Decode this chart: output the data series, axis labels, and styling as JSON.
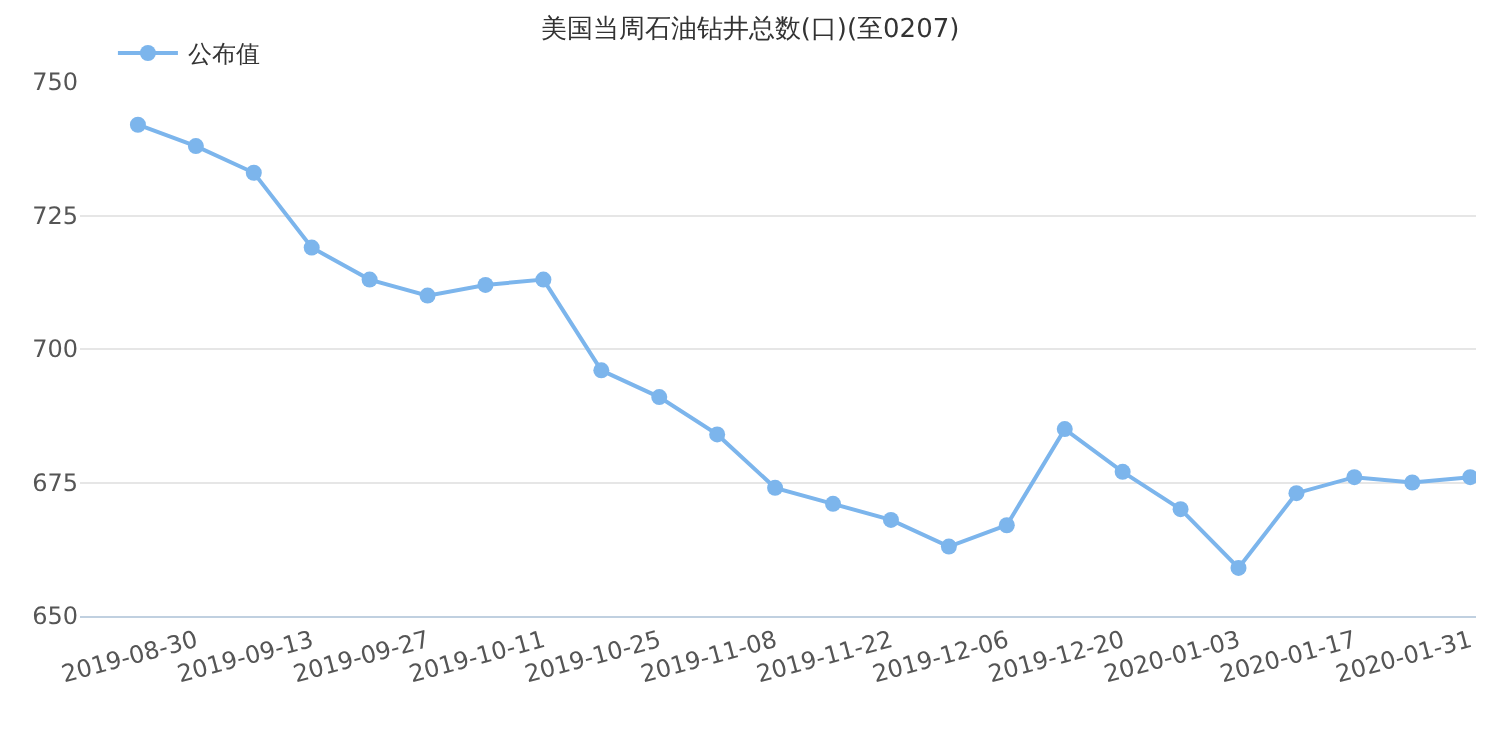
{
  "chart_data": {
    "type": "line",
    "title": "美国当周石油钻井总数(口)(至0207)",
    "categories": [
      null,
      "2019-08-30",
      null,
      "2019-09-13",
      null,
      "2019-09-27",
      null,
      "2019-10-11",
      null,
      "2019-10-25",
      null,
      "2019-11-08",
      null,
      "2019-11-22",
      null,
      "2019-12-06",
      null,
      "2019-12-20",
      null,
      "2020-01-03",
      null,
      "2020-01-17",
      null,
      "2020-01-31"
    ],
    "series": [
      {
        "name": "公布值",
        "color": "#7cb5ec",
        "values": [
          742,
          738,
          733,
          719,
          713,
          710,
          712,
          713,
          696,
          691,
          684,
          674,
          671,
          668,
          663,
          667,
          685,
          677,
          670,
          659,
          673,
          676,
          675,
          676
        ]
      }
    ],
    "ylim": [
      650,
      750
    ],
    "yticks": [
      650,
      675,
      700,
      725,
      750
    ],
    "grid": "y",
    "legend": "top left",
    "marker": "circle",
    "line_style": "solid"
  }
}
